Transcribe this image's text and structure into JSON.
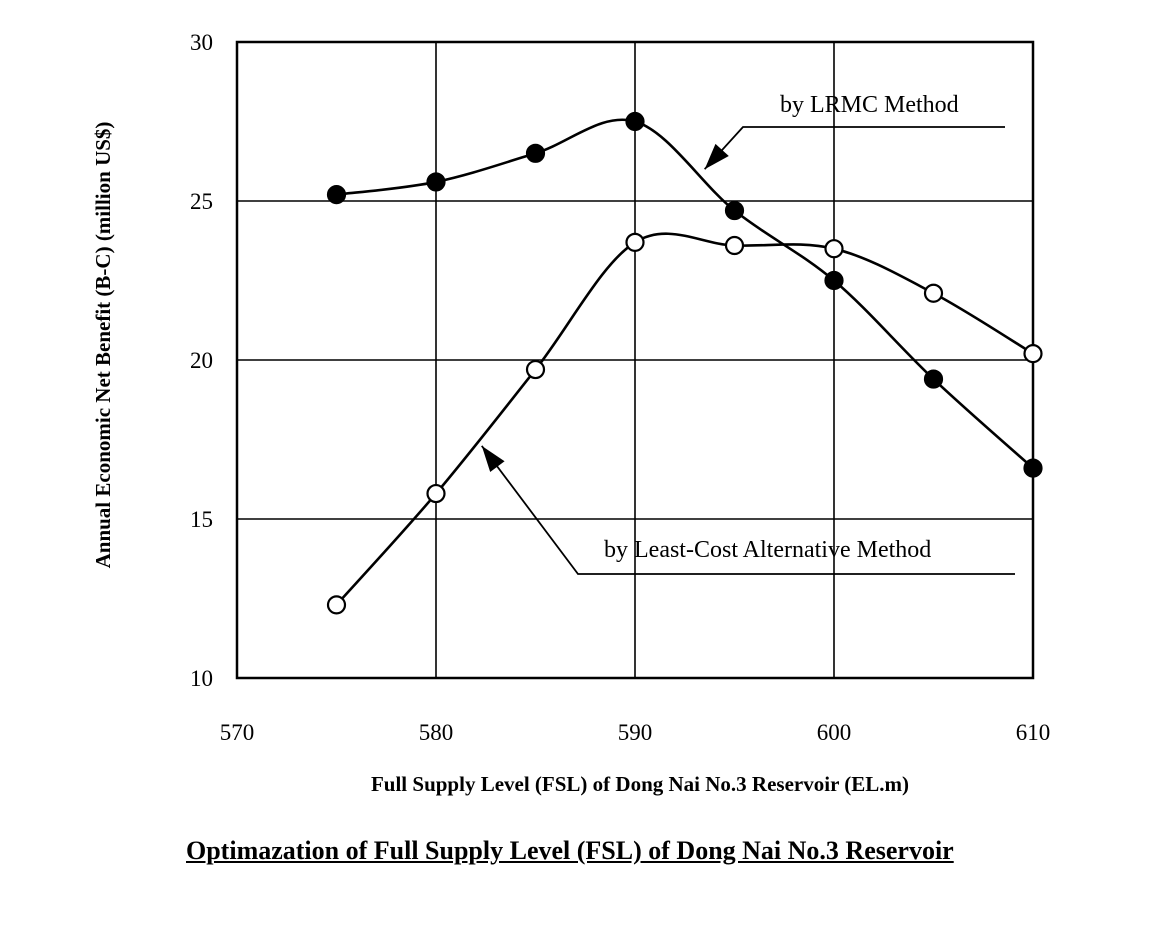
{
  "caption": "Optimazation of Full Supply Level (FSL) of Dong Nai No.3 Reservoir",
  "chart_data": {
    "type": "line",
    "title": "",
    "xlabel": "Full Supply Level (FSL) of Dong Nai No.3 Reservoir (EL.m)",
    "ylabel": "Annual Economic Net Benefit (B-C)  (million US$)",
    "xlim": [
      570,
      610
    ],
    "ylim": [
      10,
      30
    ],
    "xticks": [
      "570",
      "580",
      "590",
      "600",
      "610"
    ],
    "yticks": [
      "10",
      "15",
      "20",
      "25",
      "30"
    ],
    "grid": true,
    "smooth": true,
    "series": [
      {
        "name": "by LRMC Method",
        "marker": "filled-circle",
        "color": "#000000",
        "x": [
          575,
          580,
          585,
          590,
          595,
          600,
          605,
          610
        ],
        "y": [
          25.2,
          25.6,
          26.5,
          27.5,
          24.7,
          22.5,
          19.4,
          16.6
        ]
      },
      {
        "name": "by Least-Cost Alternative Method",
        "marker": "open-circle",
        "color": "#000000",
        "x": [
          575,
          580,
          585,
          590,
          595,
          600,
          605,
          610
        ],
        "y": [
          12.3,
          15.8,
          19.7,
          23.7,
          23.6,
          23.5,
          22.1,
          20.2
        ]
      }
    ],
    "annotations": [
      {
        "text": "by LRMC Method",
        "series": 0,
        "x": 593.5,
        "y": 26.0
      },
      {
        "text": "by Least-Cost Alternative Method",
        "series": 1,
        "x": 582.3,
        "y": 17.3
      }
    ]
  }
}
